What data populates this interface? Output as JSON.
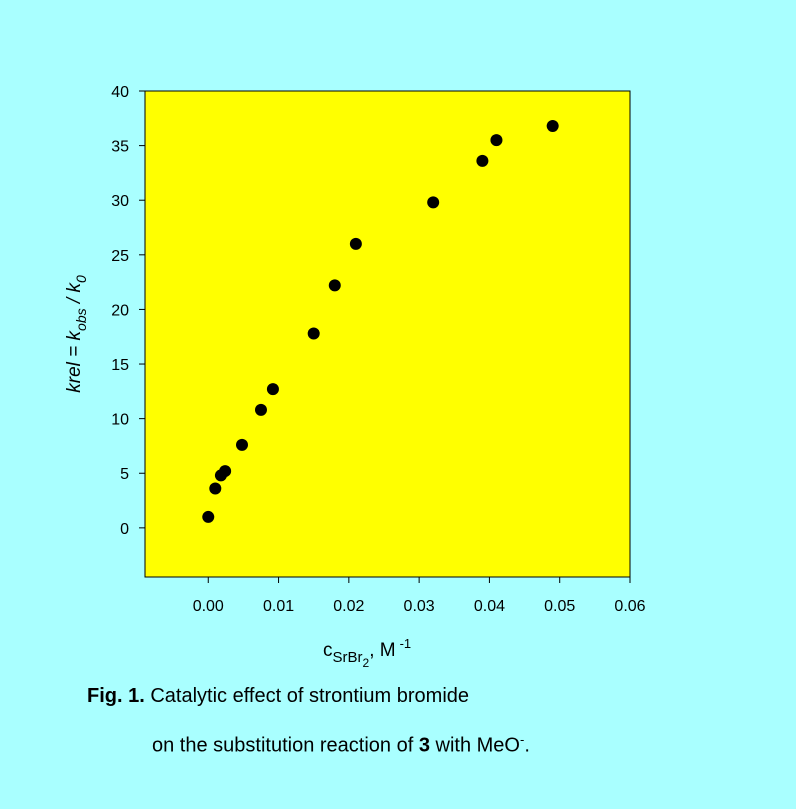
{
  "chart_data": {
    "type": "scatter",
    "x": [
      0.0,
      0.001,
      0.0018,
      0.0024,
      0.0048,
      0.0075,
      0.0092,
      0.015,
      0.018,
      0.021,
      0.032,
      0.039,
      0.041,
      0.049
    ],
    "y": [
      1.0,
      3.6,
      4.8,
      5.2,
      7.6,
      10.8,
      12.7,
      17.8,
      22.2,
      26.0,
      29.8,
      33.6,
      35.5,
      36.8
    ],
    "xlim": [
      -0.009,
      0.06
    ],
    "ylim": [
      -4.5,
      40
    ],
    "xticks": [
      "0.00",
      "0.01",
      "0.02",
      "0.03",
      "0.04",
      "0.05",
      "0.06"
    ],
    "yticks": [
      "0",
      "5",
      "10",
      "15",
      "20",
      "25",
      "30",
      "35",
      "40"
    ],
    "xlabel": {
      "main": "c",
      "sub": "SrBr",
      "subsub": "2",
      "unit": ", M",
      "sup": "-1"
    },
    "ylabel": {
      "a": "krel = k",
      "a_sub": "obs",
      "b": " / k",
      "b_sub": "0"
    },
    "grid": false,
    "legend": "none",
    "colors": {
      "plot_area": "#FFFF00",
      "marker": "#000000",
      "background": "#A9FFFF"
    }
  },
  "caption": {
    "line1_bold": "Fig. 1.",
    "line1_text": " Catalytic effect of strontium bromide",
    "line2_text": "on the substitution reaction of ",
    "line2_bold": "3",
    "line2_text2": " with MeO",
    "line2_sup": "-",
    "line2_end": "."
  }
}
